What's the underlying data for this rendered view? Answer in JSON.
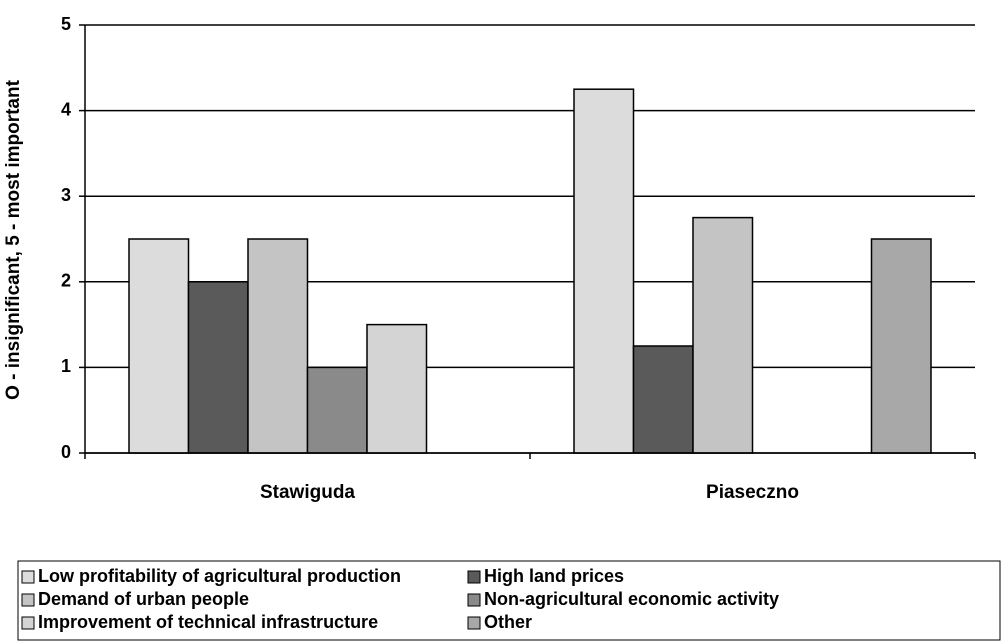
{
  "chart_data": {
    "type": "bar",
    "ylabel": "O - insignificant, 5 - most important",
    "categories": [
      "Stawiguda",
      "Piaseczno"
    ],
    "series": [
      {
        "name": "Low profitability of agricultural production",
        "color": "#dcdcdc",
        "values": [
          2.5,
          4.25
        ]
      },
      {
        "name": "High land prices",
        "color": "#5a5a5a",
        "values": [
          2.0,
          1.25
        ]
      },
      {
        "name": "Demand of urban people",
        "color": "#c4c4c4",
        "values": [
          2.5,
          2.75
        ]
      },
      {
        "name": "Non-agricultural economic activity",
        "color": "#8a8a8a",
        "values": [
          1.0,
          null
        ]
      },
      {
        "name": "Improvement of technical infrastructure",
        "color": "#d4d4d4",
        "values": [
          1.5,
          null
        ]
      },
      {
        "name": "Other",
        "color": "#a8a8a8",
        "values": [
          null,
          2.5
        ]
      }
    ],
    "ylim": [
      0,
      5
    ],
    "yticks": [
      0,
      1,
      2,
      3,
      4,
      5
    ],
    "grid": true
  }
}
